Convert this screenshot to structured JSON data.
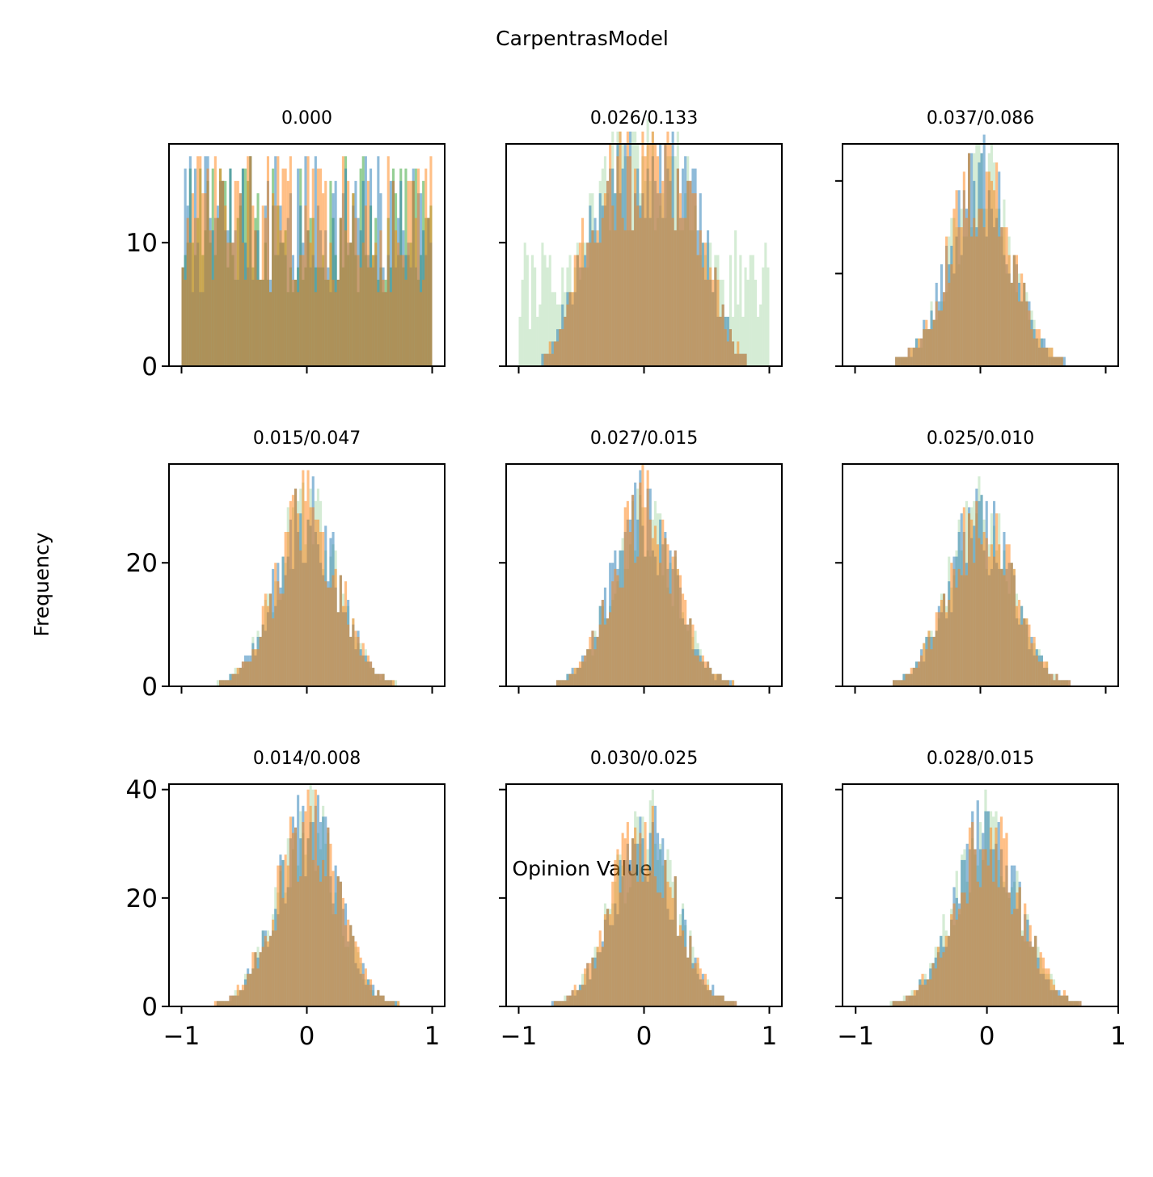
{
  "figure": {
    "title": "CarpentrasModel",
    "xlabel": "Opinion Value",
    "ylabel": "Frequency"
  },
  "colors": {
    "series_blue": "#1f77b4",
    "series_orange": "#ff7f0e",
    "series_green": "#2ca02c",
    "axis": "#000000"
  },
  "chart_data": [
    {
      "type": "bar",
      "title": "0.000",
      "row": 0,
      "col": 0,
      "xlim": [
        -1.1,
        1.1
      ],
      "ylim": [
        0,
        18
      ],
      "yticks": [
        0,
        10
      ],
      "xticks": [
        -1,
        0,
        1
      ],
      "bins": 100,
      "bin_range": [
        -1,
        1
      ],
      "shape": "uniform",
      "peak": 17,
      "base": 9,
      "series_opacity": [
        0.5,
        0.5,
        0.5
      ]
    },
    {
      "type": "bar",
      "title": "0.026/0.133",
      "row": 0,
      "col": 1,
      "xlim": [
        -1.1,
        1.1
      ],
      "ylim": [
        0,
        18
      ],
      "yticks": [
        0,
        10
      ],
      "xticks": [
        -1,
        0,
        1
      ],
      "bins": 100,
      "bin_range": [
        -1,
        1
      ],
      "shape": "plateau",
      "peak": 16.5,
      "base": 9,
      "series_opacity": [
        0.5,
        0.5,
        0.2
      ]
    },
    {
      "type": "bar",
      "title": "0.037/0.086",
      "row": 0,
      "col": 2,
      "xlim": [
        -1.1,
        1.1
      ],
      "ylim": [
        0,
        24
      ],
      "yticks": [
        0,
        10,
        20
      ],
      "xticks": [
        -1,
        0,
        1
      ],
      "bins": 100,
      "bin_range": [
        -1,
        1
      ],
      "shape": "peak",
      "peak": 21,
      "base": 9,
      "series_opacity": [
        0.5,
        0.5,
        0.2
      ]
    },
    {
      "type": "bar",
      "title": "0.015/0.047",
      "row": 1,
      "col": 0,
      "xlim": [
        -1.1,
        1.1
      ],
      "ylim": [
        0,
        36
      ],
      "yticks": [
        0,
        20
      ],
      "xticks": [
        -1,
        0,
        1
      ],
      "bins": 100,
      "bin_range": [
        -1,
        1
      ],
      "shape": "peak",
      "peak": 30,
      "base": 9,
      "series_opacity": [
        0.5,
        0.5,
        0.2
      ]
    },
    {
      "type": "bar",
      "title": "0.027/0.015",
      "row": 1,
      "col": 1,
      "xlim": [
        -1.1,
        1.1
      ],
      "ylim": [
        0,
        36
      ],
      "yticks": [
        0,
        20
      ],
      "xticks": [
        -1,
        0,
        1
      ],
      "bins": 100,
      "bin_range": [
        -1,
        1
      ],
      "shape": "peak",
      "peak": 30,
      "base": 9,
      "series_opacity": [
        0.5,
        0.5,
        0.2
      ]
    },
    {
      "type": "bar",
      "title": "0.025/0.010",
      "row": 1,
      "col": 2,
      "xlim": [
        -1.1,
        1.1
      ],
      "ylim": [
        0,
        36
      ],
      "yticks": [
        0,
        20
      ],
      "xticks": [
        -1,
        0,
        1
      ],
      "bins": 100,
      "bin_range": [
        -1,
        1
      ],
      "shape": "peak",
      "peak": 29,
      "base": 9,
      "series_opacity": [
        0.5,
        0.5,
        0.2
      ]
    },
    {
      "type": "bar",
      "title": "0.014/0.008",
      "row": 2,
      "col": 0,
      "xlim": [
        -1.1,
        1.1
      ],
      "ylim": [
        0,
        41
      ],
      "yticks": [
        0,
        20,
        40
      ],
      "xticks": [
        -1,
        0,
        1
      ],
      "bins": 100,
      "bin_range": [
        -1,
        1
      ],
      "shape": "peak",
      "peak": 35,
      "base": 9,
      "series_opacity": [
        0.5,
        0.5,
        0.2
      ]
    },
    {
      "type": "bar",
      "title": "0.030/0.025",
      "row": 2,
      "col": 1,
      "xlim": [
        -1.1,
        1.1
      ],
      "ylim": [
        0,
        41
      ],
      "yticks": [
        0,
        20,
        40
      ],
      "xticks": [
        -1,
        0,
        1
      ],
      "bins": 100,
      "bin_range": [
        -1,
        1
      ],
      "shape": "peak",
      "peak": 35,
      "base": 9,
      "series_opacity": [
        0.5,
        0.5,
        0.2
      ]
    },
    {
      "type": "bar",
      "title": "0.028/0.015",
      "row": 2,
      "col": 2,
      "xlim": [
        -1.1,
        1.0
      ],
      "ylim": [
        0,
        41
      ],
      "yticks": [
        0,
        20,
        40
      ],
      "xticks": [
        -1,
        0,
        1
      ],
      "bins": 100,
      "bin_range": [
        -1,
        1
      ],
      "shape": "peak",
      "peak": 34,
      "base": 9,
      "series_opacity": [
        0.5,
        0.5,
        0.2
      ]
    }
  ]
}
